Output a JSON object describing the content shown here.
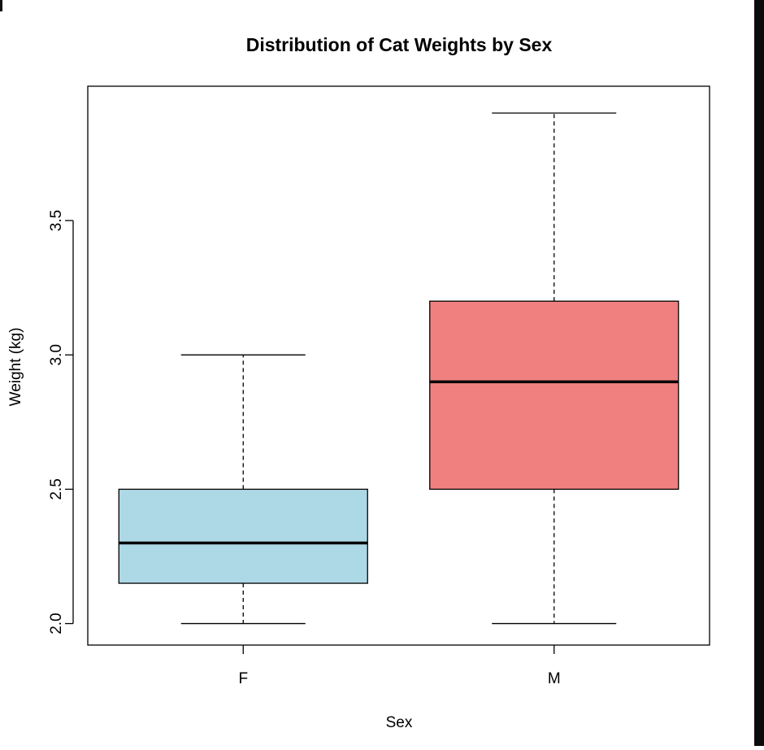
{
  "chart_data": {
    "type": "box",
    "title": "Distribution of Cat Weights by Sex",
    "xlabel": "Sex",
    "ylabel": "Weight (kg)",
    "ylim": [
      1.92,
      4.0
    ],
    "yticks": [
      2.0,
      2.5,
      3.0,
      3.5
    ],
    "ytick_labels": [
      "2.0",
      "2.5",
      "3.0",
      "3.5"
    ],
    "categories": [
      "F",
      "M"
    ],
    "boxes": [
      {
        "category": "F",
        "min": 2.0,
        "q1": 2.15,
        "median": 2.3,
        "q3": 2.5,
        "max": 3.0,
        "color": "#add8e6"
      },
      {
        "category": "M",
        "min": 2.0,
        "q1": 2.5,
        "median": 2.9,
        "q3": 3.2,
        "max": 3.9,
        "color": "#f08080"
      }
    ],
    "grid": false,
    "legend": "none"
  }
}
